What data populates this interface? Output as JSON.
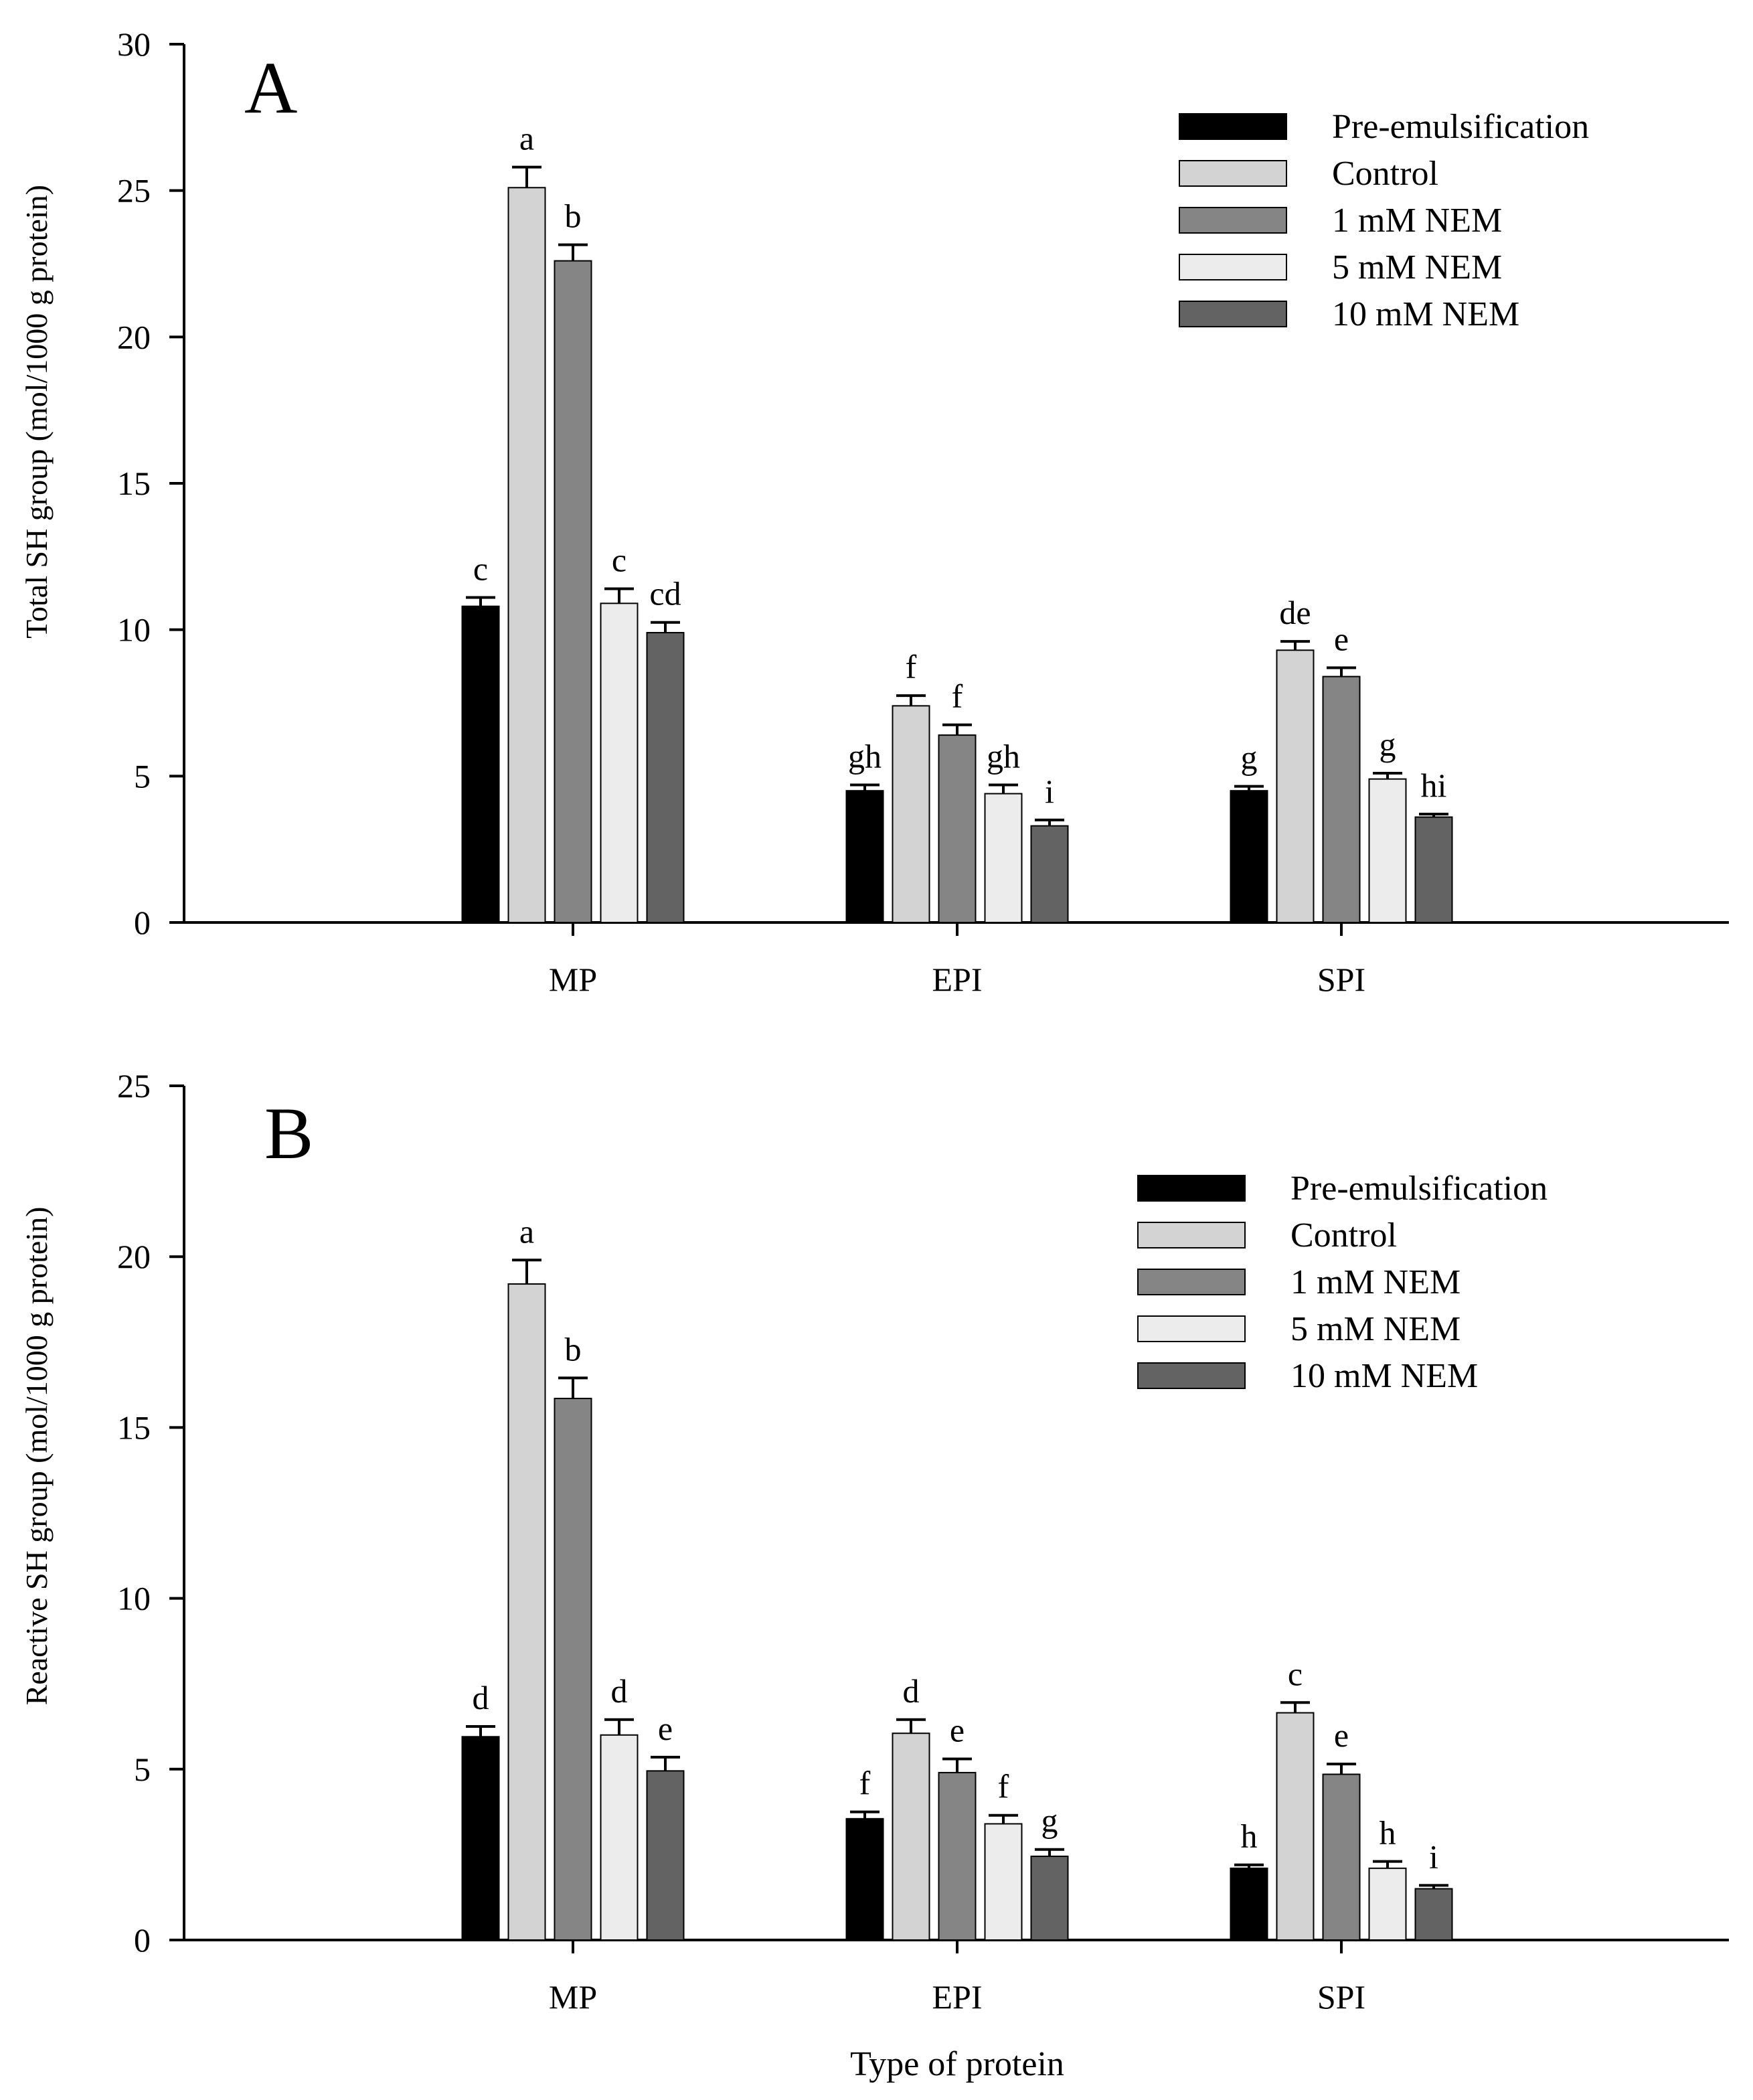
{
  "chart_data": [
    {
      "type": "bar",
      "panel": "A",
      "categories": [
        "MP",
        "EPI",
        "SPI"
      ],
      "ylabel": "Total SH group (mol/1000 g protein)",
      "xlabel": "",
      "ylim": [
        0,
        30
      ],
      "yticks": [
        0,
        5,
        10,
        15,
        20,
        25,
        30
      ],
      "legend": "top-right",
      "series": [
        {
          "name": "Pre-emulsification",
          "color": "#000000",
          "values": [
            10.8,
            4.5,
            4.5
          ],
          "errors": [
            0.3,
            0.2,
            0.15
          ],
          "letters": [
            "c",
            "gh",
            "g"
          ]
        },
        {
          "name": "Control",
          "color": "#d3d3d3",
          "values": [
            25.1,
            7.4,
            9.3
          ],
          "errors": [
            0.7,
            0.35,
            0.3
          ],
          "letters": [
            "a",
            "f",
            "de"
          ]
        },
        {
          "name": "1 mM NEM",
          "color": "#858585",
          "values": [
            22.6,
            6.4,
            8.4
          ],
          "errors": [
            0.55,
            0.35,
            0.3
          ],
          "letters": [
            "b",
            "f",
            "e"
          ]
        },
        {
          "name": "5 mM NEM",
          "color": "#ececec",
          "values": [
            10.9,
            4.4,
            4.9
          ],
          "errors": [
            0.5,
            0.3,
            0.2
          ],
          "letters": [
            "c",
            "gh",
            "g"
          ]
        },
        {
          "name": "10 mM NEM",
          "color": "#636363",
          "values": [
            9.9,
            3.3,
            3.6
          ],
          "errors": [
            0.35,
            0.2,
            0.1
          ],
          "letters": [
            "cd",
            "i",
            "hi"
          ]
        }
      ]
    },
    {
      "type": "bar",
      "panel": "B",
      "categories": [
        "MP",
        "EPI",
        "SPI"
      ],
      "ylabel": "Reactive SH group (mol/1000 g protein)",
      "xlabel": "Type of protein",
      "ylim": [
        0,
        25
      ],
      "yticks": [
        0,
        5,
        10,
        15,
        20,
        25
      ],
      "legend": "top-right",
      "series": [
        {
          "name": "Pre-emulsification",
          "color": "#000000",
          "values": [
            5.95,
            3.55,
            2.1
          ],
          "errors": [
            0.3,
            0.2,
            0.1
          ],
          "letters": [
            "d",
            "f",
            "h"
          ]
        },
        {
          "name": "Control",
          "color": "#d3d3d3",
          "values": [
            19.2,
            6.05,
            6.65
          ],
          "errors": [
            0.7,
            0.4,
            0.3
          ],
          "letters": [
            "a",
            "d",
            "c"
          ]
        },
        {
          "name": "1 mM NEM",
          "color": "#858585",
          "values": [
            15.85,
            4.9,
            4.85
          ],
          "errors": [
            0.6,
            0.4,
            0.3
          ],
          "letters": [
            "b",
            "e",
            "e"
          ]
        },
        {
          "name": "5 mM NEM",
          "color": "#ececec",
          "values": [
            6.0,
            3.4,
            2.1
          ],
          "errors": [
            0.45,
            0.25,
            0.2
          ],
          "letters": [
            "d",
            "f",
            "h"
          ]
        },
        {
          "name": "10 mM NEM",
          "color": "#636363",
          "values": [
            4.95,
            2.45,
            1.5
          ],
          "errors": [
            0.4,
            0.2,
            0.1
          ],
          "letters": [
            "e",
            "g",
            "i"
          ]
        }
      ]
    }
  ]
}
